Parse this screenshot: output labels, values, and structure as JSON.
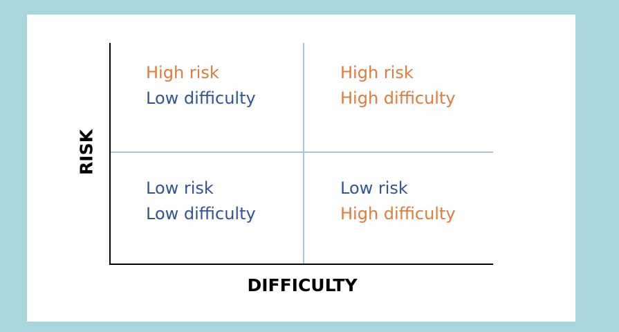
{
  "colors": {
    "background": "#a8d6dc",
    "panel": "#ffffff",
    "axis": "#000000",
    "divider": "#a9c3dd",
    "high": "#e07b39",
    "low": "#2e5597"
  },
  "axes": {
    "y_label": "RISK",
    "x_label": "DIFFICULTY"
  },
  "quadrants": {
    "top_left": {
      "risk": "High risk",
      "difficulty": "Low difficulty"
    },
    "top_right": {
      "risk": "High risk",
      "difficulty": "High difficulty"
    },
    "bottom_left": {
      "risk": "Low risk",
      "difficulty": "Low difficulty"
    },
    "bottom_right": {
      "risk": "Low risk",
      "difficulty": "High difficulty"
    }
  }
}
